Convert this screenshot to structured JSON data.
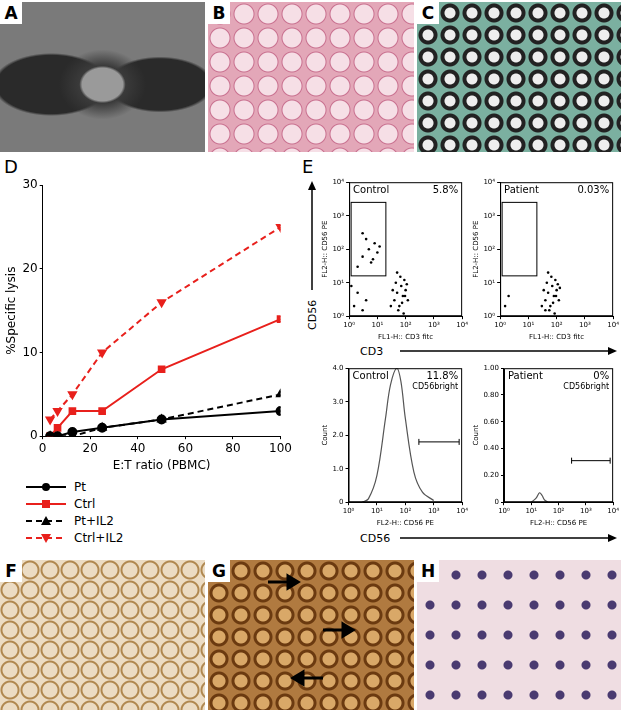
{
  "image_panels": [
    "A",
    "B",
    "C",
    "F",
    "G",
    "H"
  ],
  "E_axis_labels": {
    "y_top": "CD56",
    "x_top": "CD3",
    "x_bottom": "CD56"
  },
  "chart_data": [
    {
      "panel": "D",
      "type": "line",
      "x_label": "E:T ratio (PBMC)",
      "y_label": "%Specific lysis",
      "x": [
        3.125,
        6.25,
        12.5,
        25,
        50,
        100
      ],
      "series": [
        {
          "name": "Pt",
          "color": "#000000",
          "marker": "circle",
          "line_style": "solid",
          "values": [
            0,
            0,
            0.5,
            1,
            2,
            3
          ]
        },
        {
          "name": "Ctrl",
          "color": "#e8201c",
          "marker": "square",
          "line_style": "solid",
          "values": [
            0,
            1,
            3,
            3,
            8,
            14
          ]
        },
        {
          "name": "Pt+IL2",
          "color": "#000000",
          "marker": "triangle-up",
          "line_style": "dashed",
          "values": [
            0,
            0,
            0,
            1,
            2,
            5
          ]
        },
        {
          "name": "Ctrl+IL2",
          "color": "#e8201c",
          "marker": "triangle-down",
          "line_style": "dashed",
          "values": [
            2,
            3,
            5,
            10,
            16,
            25
          ]
        }
      ],
      "xlim": [
        0,
        100
      ],
      "xticks": [
        0,
        20,
        40,
        60,
        80,
        100
      ],
      "ylim": [
        0,
        30
      ],
      "yticks": [
        0,
        10,
        20,
        30
      ],
      "grid": false,
      "legend": "bottom"
    },
    {
      "panel": "E",
      "type": "scatter",
      "title": "Control",
      "annotations": [
        "5.8%"
      ],
      "x_label": "FL1-H:: CD3 fitc",
      "y_label": "FL2-H:: CD56 PE",
      "log": true,
      "color": "#000000",
      "x": [
        30,
        40,
        50,
        60,
        70,
        80,
        90,
        100,
        45,
        55,
        120,
        65,
        35,
        75,
        110,
        85,
        50,
        95,
        2,
        3,
        5,
        8,
        4,
        6,
        10,
        3,
        7,
        12,
        1.5,
        2,
        3,
        1.2,
        4
      ],
      "values": [
        2,
        3,
        5,
        2,
        8,
        4,
        12,
        6,
        10,
        1.5,
        3,
        15,
        6,
        2.5,
        9,
        1.2,
        20,
        4,
        30,
        60,
        100,
        150,
        200,
        40,
        80,
        300,
        50,
        120,
        2,
        5,
        1.5,
        8,
        3
      ],
      "gate": {
        "x": [
          1,
          20
        ],
        "y": [
          16,
          2500
        ]
      },
      "xlim": [
        1,
        10000
      ],
      "xticks": [
        {
          "value": 1,
          "label": "10⁰"
        },
        {
          "value": 10,
          "label": "10¹"
        },
        {
          "value": 100,
          "label": "10²"
        },
        {
          "value": 1000,
          "label": "10³"
        },
        {
          "value": 10000,
          "label": "10⁴"
        }
      ],
      "ylim": [
        1,
        10000
      ],
      "yticks": [
        {
          "value": 1,
          "label": "10⁰"
        },
        {
          "value": 10,
          "label": "10¹"
        },
        {
          "value": 100,
          "label": "10²"
        },
        {
          "value": 1000,
          "label": "10³"
        },
        {
          "value": 10000,
          "label": "10⁴"
        }
      ],
      "grid": false
    },
    {
      "panel": "E",
      "type": "scatter",
      "title": "Patient",
      "annotations": [
        "0.03%"
      ],
      "x_label": "FL1-H:: CD3 fitc",
      "y_label": "FL2-H:: CD56 PE",
      "log": true,
      "color": "#000000",
      "x": [
        30,
        40,
        50,
        60,
        70,
        80,
        90,
        100,
        45,
        55,
        120,
        65,
        35,
        75,
        110,
        85,
        50,
        95,
        40,
        130,
        1.5,
        2
      ],
      "values": [
        2,
        3,
        5,
        2,
        8,
        4,
        12,
        6,
        10,
        1.5,
        3,
        15,
        6,
        2.5,
        9,
        1.2,
        20,
        4,
        1.5,
        7,
        2,
        4
      ],
      "gate": {
        "x": [
          1,
          20
        ],
        "y": [
          16,
          2500
        ]
      },
      "xlim": [
        1,
        10000
      ],
      "xticks": [
        {
          "value": 1,
          "label": "10⁰"
        },
        {
          "value": 10,
          "label": "10¹"
        },
        {
          "value": 100,
          "label": "10²"
        },
        {
          "value": 1000,
          "label": "10³"
        },
        {
          "value": 10000,
          "label": "10⁴"
        }
      ],
      "ylim": [
        1,
        10000
      ],
      "yticks": [
        {
          "value": 1,
          "label": "10⁰"
        },
        {
          "value": 10,
          "label": "10¹"
        },
        {
          "value": 100,
          "label": "10²"
        },
        {
          "value": 1000,
          "label": "10³"
        },
        {
          "value": 10000,
          "label": "10⁴"
        }
      ],
      "grid": false
    },
    {
      "panel": "E",
      "type": "line",
      "title": "Control",
      "annotations": [
        "11.8%",
        "CD56bright"
      ],
      "x_label": "FL2-H:: CD56 PE",
      "y_label": "Count",
      "log": "x",
      "color": "#555555",
      "x": [
        3,
        5,
        10,
        20,
        30,
        50,
        70,
        100,
        200,
        400,
        1000
      ],
      "values": [
        0,
        0.1,
        0.8,
        2.5,
        3.5,
        4,
        3.6,
        2.5,
        0.9,
        0.3,
        0.05
      ],
      "gate": {
        "x": [
          300,
          10000
        ],
        "y": 1.8
      },
      "xlim": [
        1,
        10000
      ],
      "xticks": [
        {
          "value": 1,
          "label": "10⁰"
        },
        {
          "value": 10,
          "label": "10¹"
        },
        {
          "value": 100,
          "label": "10²"
        },
        {
          "value": 1000,
          "label": "10³"
        },
        {
          "value": 10000,
          "label": "10⁴"
        }
      ],
      "ylim": [
        0,
        4
      ],
      "yticks": [
        0,
        {
          "value": 1,
          "label": "1.0"
        },
        {
          "value": 2,
          "label": "2.0"
        },
        {
          "value": 3,
          "label": "3.0"
        },
        {
          "value": 4,
          "label": "4.0"
        }
      ],
      "grid": false
    },
    {
      "panel": "E",
      "type": "line",
      "title": "Patient",
      "annotations": [
        "0%",
        "CD56bright"
      ],
      "x_label": "FL2-H:: CD56 PE",
      "y_label": "Count",
      "log": "x",
      "color": "#555555",
      "x": [
        10,
        15,
        20,
        25,
        30,
        40
      ],
      "values": [
        0,
        0.03,
        0.07,
        0.05,
        0.02,
        0
      ],
      "gate": {
        "x": [
          300,
          10000
        ],
        "y": 0.31
      },
      "xlim": [
        1,
        10000
      ],
      "xticks": [
        {
          "value": 1,
          "label": "10⁰"
        },
        {
          "value": 10,
          "label": "10¹"
        },
        {
          "value": 100,
          "label": "10²"
        },
        {
          "value": 1000,
          "label": "10³"
        },
        {
          "value": 10000,
          "label": "10⁴"
        }
      ],
      "ylim": [
        0,
        1
      ],
      "yticks": [
        0,
        {
          "value": 0.2,
          "label": "0.20"
        },
        {
          "value": 0.4,
          "label": "0.40"
        },
        {
          "value": 0.6,
          "label": "0.60"
        },
        {
          "value": 0.8,
          "label": "0.80"
        },
        {
          "value": 1,
          "label": "1.00"
        }
      ],
      "grid": false
    }
  ]
}
